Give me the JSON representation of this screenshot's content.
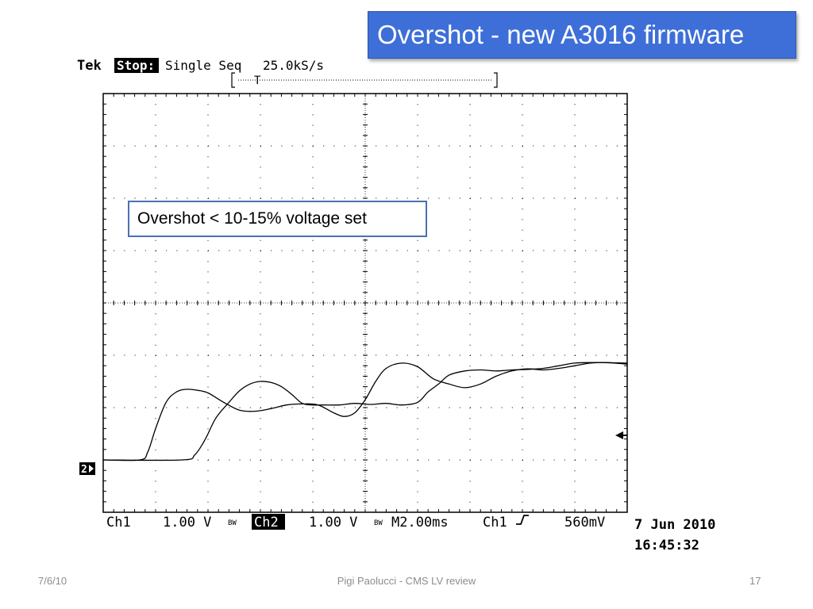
{
  "slide": {
    "title": "Overshot - new A3016 firmware",
    "callout": "Overshot < 10-15% voltage set",
    "footer_date": "7/6/10",
    "footer_center": "Pigi Paolucci - CMS LV review",
    "page_number": "17"
  },
  "scope": {
    "brand": "Tek",
    "run_state": "Stop:",
    "acq_mode": "Single Seq",
    "sample_rate": "25.0kS/s",
    "trigger_marker": "T",
    "ch1_label": "Ch1",
    "ch1_scale": "1.00 V",
    "bw_mark": "BW",
    "ch2_label": "Ch2",
    "ch2_scale": "1.00 V",
    "timebase": "M2.00ms",
    "trigger_source": "Ch1",
    "trigger_slope": "rising",
    "trigger_level": "560mV",
    "date": "7 Jun 2010",
    "time": "16:45:32",
    "ground_marker": "2",
    "colors": {
      "trace": "#000000",
      "grid": "#000000",
      "background": "#ffffff"
    }
  },
  "chart_data": {
    "type": "line",
    "title": "",
    "xlabel": "",
    "ylabel": "",
    "divisions": {
      "x": 10,
      "y": 8
    },
    "grid": true,
    "series": [
      {
        "name": "Ch1",
        "x_div": [
          0,
          0.7,
          0.85,
          1.0,
          1.2,
          1.4,
          1.6,
          1.8,
          2.0,
          2.3,
          2.6,
          2.9,
          3.2,
          3.5,
          3.8,
          4.1,
          4.4,
          4.6,
          4.8,
          5.0,
          5.2,
          5.4,
          5.7,
          6.0,
          6.3,
          6.6,
          6.9,
          7.2,
          7.5,
          7.8,
          8.1,
          8.4,
          8.7,
          9.0,
          9.3,
          9.6,
          10.0
        ],
        "y_div": [
          1.0,
          1.0,
          1.15,
          1.6,
          2.1,
          2.3,
          2.35,
          2.33,
          2.28,
          2.1,
          1.95,
          1.93,
          1.98,
          2.05,
          2.07,
          2.05,
          1.9,
          1.83,
          1.9,
          2.15,
          2.5,
          2.75,
          2.85,
          2.78,
          2.55,
          2.45,
          2.38,
          2.45,
          2.6,
          2.7,
          2.74,
          2.72,
          2.75,
          2.8,
          2.85,
          2.86,
          2.83
        ]
      },
      {
        "name": "Ch2",
        "x_div": [
          0,
          1.5,
          1.75,
          1.95,
          2.15,
          2.4,
          2.6,
          2.8,
          3.0,
          3.2,
          3.4,
          3.6,
          3.8,
          4.0,
          4.2,
          4.5,
          4.8,
          5.1,
          5.4,
          5.7,
          6.0,
          6.2,
          6.4,
          6.6,
          6.9,
          7.2,
          7.5,
          7.8,
          8.1,
          8.4,
          8.7,
          9.0,
          9.4,
          10.0
        ],
        "y_div": [
          1.0,
          1.0,
          1.1,
          1.4,
          1.8,
          2.1,
          2.32,
          2.45,
          2.5,
          2.48,
          2.4,
          2.25,
          2.08,
          2.05,
          2.05,
          2.05,
          2.08,
          2.06,
          2.08,
          2.05,
          2.1,
          2.3,
          2.45,
          2.62,
          2.7,
          2.72,
          2.7,
          2.72,
          2.73,
          2.75,
          2.8,
          2.85,
          2.86,
          2.85
        ]
      }
    ]
  }
}
